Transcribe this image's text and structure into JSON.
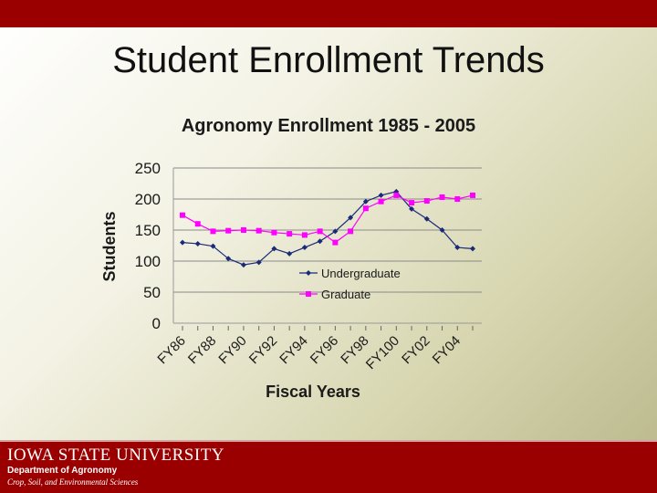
{
  "slide": {
    "title": "Student Enrollment Trends"
  },
  "footer": {
    "university": "IOWA STATE UNIVERSITY",
    "department": "Department of Agronomy",
    "subtitle": "Crop, Soil, and Environmental Sciences"
  },
  "colors": {
    "bar": "#9a0000",
    "undergraduate": "#1a2a78",
    "graduate": "#ff00ff"
  },
  "chart_data": {
    "type": "line",
    "title": "Agronomy Enrollment 1985 - 2005",
    "xlabel": "Fiscal Years",
    "ylabel": "Students",
    "ylim": [
      0,
      250
    ],
    "yticks": [
      0,
      50,
      100,
      150,
      200,
      250
    ],
    "grid": true,
    "legend": "inside-bottom-center",
    "x_tick_labels": [
      "FY86",
      "FY88",
      "FY90",
      "FY92",
      "FY94",
      "FY96",
      "FY98",
      "FY100",
      "FY02",
      "FY04"
    ],
    "series": [
      {
        "name": "Undergraduate",
        "color": "#1a2a78",
        "marker": "diamond",
        "values": [
          130,
          128,
          124,
          104,
          94,
          98,
          120,
          112,
          122,
          132,
          148,
          170,
          196,
          206,
          212,
          184,
          168,
          150,
          122,
          120
        ]
      },
      {
        "name": "Graduate",
        "color": "#ff00ff",
        "marker": "square",
        "values": [
          174,
          160,
          148,
          149,
          150,
          149,
          146,
          144,
          142,
          148,
          130,
          148,
          185,
          196,
          206,
          194,
          197,
          203,
          200,
          206
        ]
      }
    ]
  }
}
